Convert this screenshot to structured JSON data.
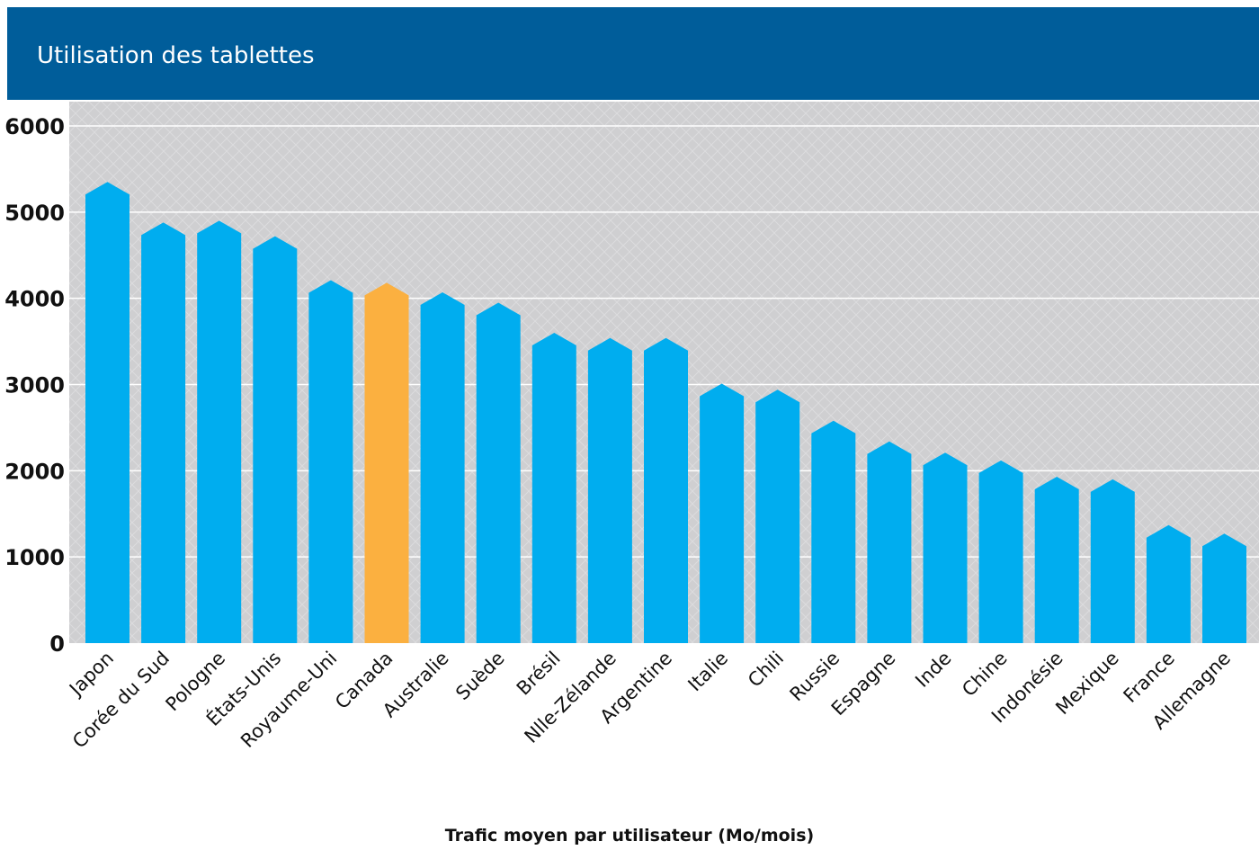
{
  "header": {
    "title": "Utilisation des tablettes"
  },
  "colors": {
    "header": "#005d9a",
    "bar": "#00adef",
    "highlight": "#fbb040",
    "plot_bg": "#cfcfd1",
    "grid": "#ffffff"
  },
  "chart_data": {
    "type": "bar",
    "categories": [
      "Japon",
      "Corée du Sud",
      "Pologne",
      "États-Unis",
      "Royaume-Uni",
      "Canada",
      "Australie",
      "Suède",
      "Brésil",
      "Nlle-Zélande",
      "Argentine",
      "Italie",
      "Chili",
      "Russie",
      "Espagne",
      "Inde",
      "Chine",
      "Indonésie",
      "Mexique",
      "France",
      "Allemagne"
    ],
    "values": [
      5350,
      4880,
      4900,
      4720,
      4210,
      4180,
      4070,
      3950,
      3600,
      3540,
      3540,
      3010,
      2940,
      2580,
      2340,
      2210,
      2120,
      1930,
      1900,
      1370,
      1270
    ],
    "highlight_category": "Canada",
    "xlabel": "Trafic moyen par utilisateur (Mo/mois)",
    "ylabel": "",
    "yticks": [
      "0",
      "1000",
      "2000",
      "3000",
      "4000",
      "5000",
      "6000"
    ],
    "ylim": [
      0,
      6000
    ],
    "grid": true
  }
}
